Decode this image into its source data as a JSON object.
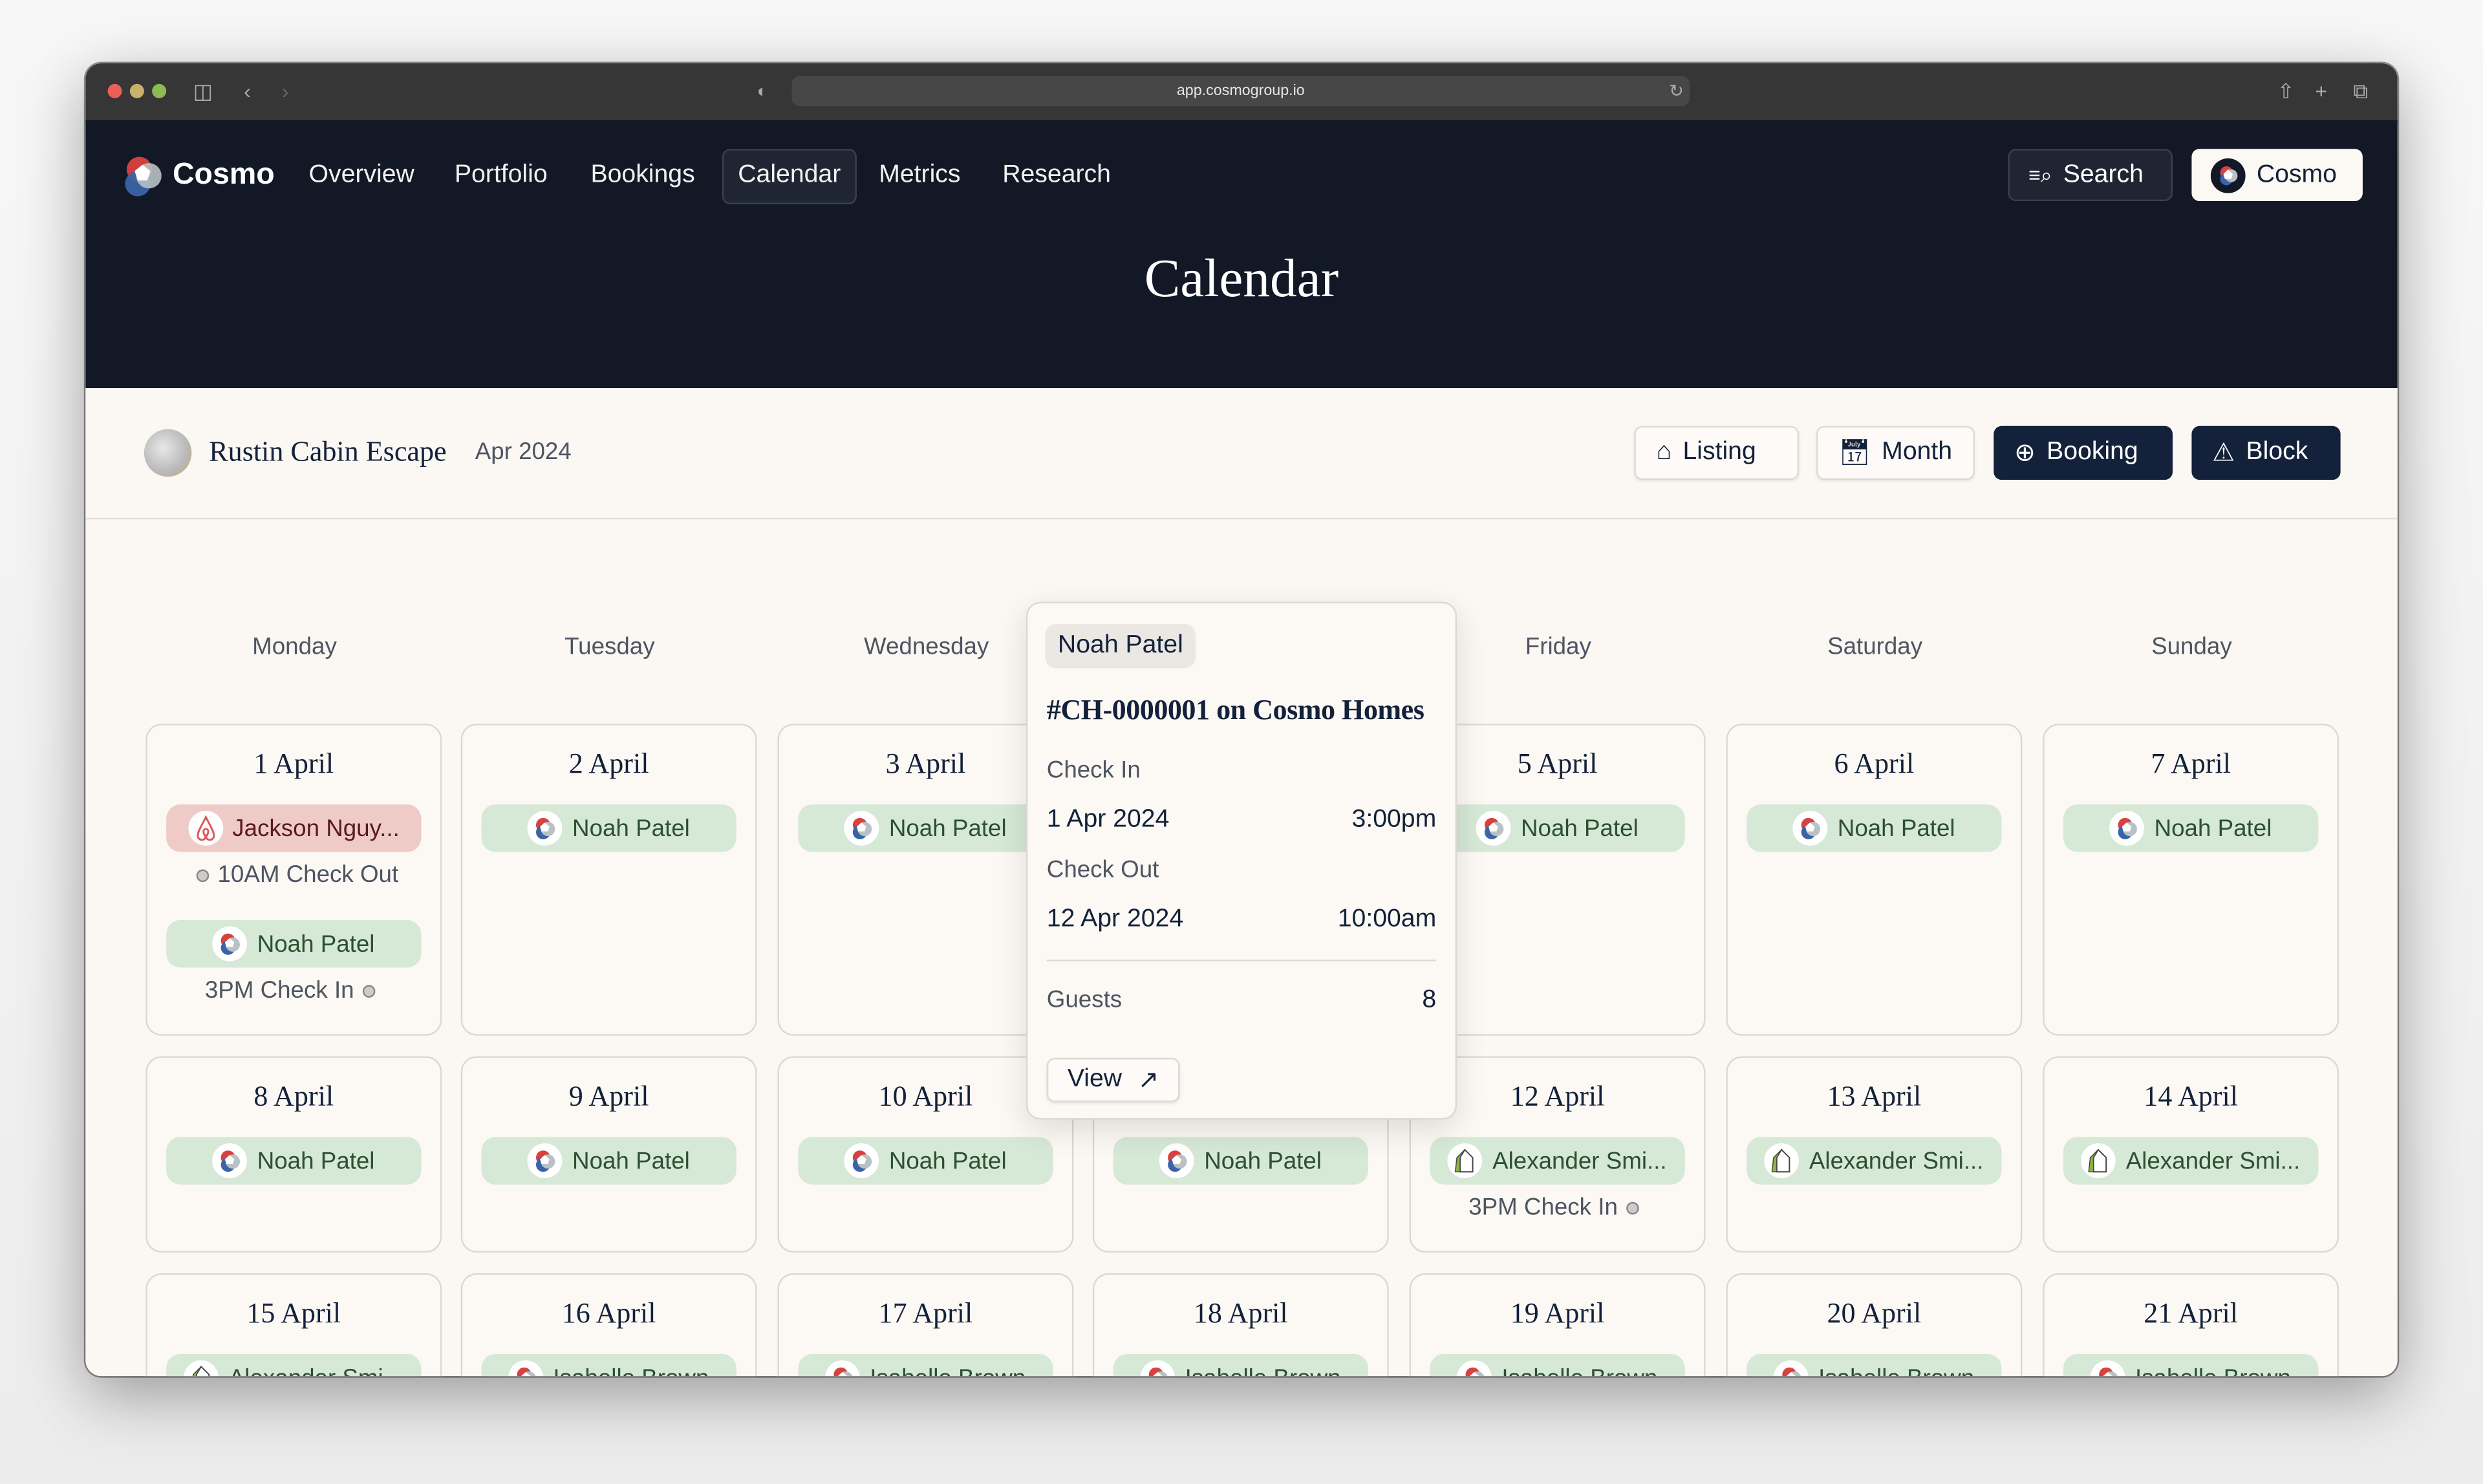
{
  "browser": {
    "url": "app.cosmogroup.io"
  },
  "nav": {
    "brand": "Cosmo",
    "items": [
      {
        "label": "Overview",
        "active": false
      },
      {
        "label": "Portfolio",
        "active": false
      },
      {
        "label": "Bookings",
        "active": false
      },
      {
        "label": "Calendar",
        "active": true
      },
      {
        "label": "Metrics",
        "active": false
      },
      {
        "label": "Research",
        "active": false
      }
    ],
    "search_label": "Search",
    "account_label": "Cosmo"
  },
  "page_title": "Calendar",
  "subheader": {
    "listing_name": "Rustin Cabin Escape",
    "month": "Apr 2024",
    "buttons": {
      "listing": "Listing",
      "month": "Month",
      "booking": "Booking",
      "block": "Block"
    }
  },
  "colors": {
    "nav_bg": "#121826",
    "primary": "#13213a",
    "pill_green": "#d6e8d6",
    "pill_red": "#efcbc8",
    "page_bg": "#fcf8f4"
  },
  "weekdays": [
    "Monday",
    "Tuesday",
    "Wednesday",
    "",
    "Friday",
    "Saturday",
    "Sunday"
  ],
  "weeks": [
    [
      {
        "date": "1 April",
        "items": [
          {
            "type": "pill",
            "name": "Jackson Nguy...",
            "icon": "airbnb-icon",
            "tone": "red"
          },
          {
            "type": "note",
            "text": "10AM Check Out",
            "dot": "before"
          },
          {
            "type": "pill",
            "name": "Noah Patel",
            "icon": "cosmo-icon",
            "tone": "green"
          },
          {
            "type": "note",
            "text": "3PM Check In",
            "dot": "after"
          }
        ]
      },
      {
        "date": "2 April",
        "items": [
          {
            "type": "pill",
            "name": "Noah Patel",
            "icon": "cosmo-icon",
            "tone": "green"
          }
        ]
      },
      {
        "date": "3 April",
        "items": [
          {
            "type": "pill",
            "name": "Noah Patel",
            "icon": "cosmo-icon",
            "tone": "green"
          }
        ]
      },
      {
        "date": "",
        "items": []
      },
      {
        "date": "5 April",
        "items": [
          {
            "type": "pill",
            "name": "Noah Patel",
            "icon": "cosmo-icon",
            "tone": "green"
          }
        ]
      },
      {
        "date": "6 April",
        "items": [
          {
            "type": "pill",
            "name": "Noah Patel",
            "icon": "cosmo-icon",
            "tone": "green"
          }
        ]
      },
      {
        "date": "7 April",
        "items": [
          {
            "type": "pill",
            "name": "Noah Patel",
            "icon": "cosmo-icon",
            "tone": "green"
          }
        ]
      }
    ],
    [
      {
        "date": "8 April",
        "items": [
          {
            "type": "pill",
            "name": "Noah Patel",
            "icon": "cosmo-icon",
            "tone": "green"
          }
        ]
      },
      {
        "date": "9 April",
        "items": [
          {
            "type": "pill",
            "name": "Noah Patel",
            "icon": "cosmo-icon",
            "tone": "green"
          }
        ]
      },
      {
        "date": "10 April",
        "items": [
          {
            "type": "pill",
            "name": "Noah Patel",
            "icon": "cosmo-icon",
            "tone": "green"
          }
        ]
      },
      {
        "date": "",
        "items": [
          {
            "type": "pill",
            "name": "Noah Patel",
            "icon": "cosmo-icon",
            "tone": "green"
          }
        ]
      },
      {
        "date": "12 April",
        "items": [
          {
            "type": "pill",
            "name": "Alexander Smi...",
            "icon": "house-icon",
            "tone": "green"
          },
          {
            "type": "note",
            "text": "3PM Check In",
            "dot": "after"
          }
        ]
      },
      {
        "date": "13 April",
        "items": [
          {
            "type": "pill",
            "name": "Alexander Smi...",
            "icon": "house-icon",
            "tone": "green"
          }
        ]
      },
      {
        "date": "14 April",
        "items": [
          {
            "type": "pill",
            "name": "Alexander Smi...",
            "icon": "house-icon",
            "tone": "green"
          }
        ]
      }
    ],
    [
      {
        "date": "15 April",
        "items": [
          {
            "type": "pill",
            "name": "Alexander Smi...",
            "icon": "house-icon",
            "tone": "green"
          }
        ]
      },
      {
        "date": "16 April",
        "items": [
          {
            "type": "pill",
            "name": "Isabelle Brown",
            "icon": "cosmo-icon",
            "tone": "green"
          }
        ]
      },
      {
        "date": "17 April",
        "items": [
          {
            "type": "pill",
            "name": "Isabelle Brown",
            "icon": "cosmo-icon",
            "tone": "green"
          }
        ]
      },
      {
        "date": "18 April",
        "items": [
          {
            "type": "pill",
            "name": "Isabelle Brown",
            "icon": "cosmo-icon",
            "tone": "green"
          }
        ]
      },
      {
        "date": "19 April",
        "items": [
          {
            "type": "pill",
            "name": "Isabelle Brown",
            "icon": "cosmo-icon",
            "tone": "green"
          }
        ]
      },
      {
        "date": "20 April",
        "items": [
          {
            "type": "pill",
            "name": "Isabelle Brown",
            "icon": "cosmo-icon",
            "tone": "green"
          }
        ]
      },
      {
        "date": "21 April",
        "items": [
          {
            "type": "pill",
            "name": "Isabelle Brown",
            "icon": "cosmo-icon",
            "tone": "green"
          }
        ]
      }
    ]
  ],
  "popover": {
    "guest": "Noah Patel",
    "reference": "#CH-0000001 on Cosmo Homes",
    "check_in_label": "Check In",
    "check_in_date": "1 Apr 2024",
    "check_in_time": "3:00pm",
    "check_out_label": "Check Out",
    "check_out_date": "12 Apr 2024",
    "check_out_time": "10:00am",
    "guests_label": "Guests",
    "guests": "8",
    "view_label": "View"
  }
}
